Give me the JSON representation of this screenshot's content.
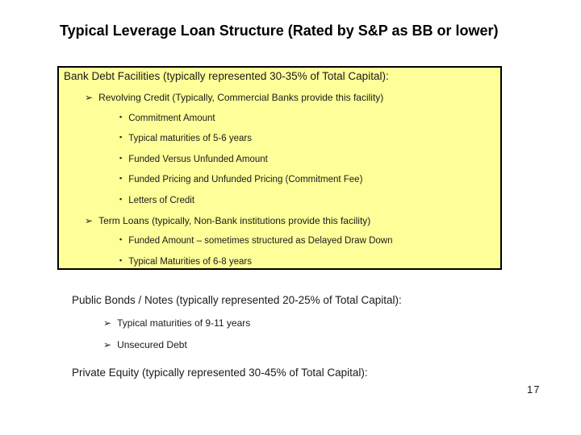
{
  "slide": {
    "title": "Typical Leverage Loan Structure (Rated by S&P as BB or lower)",
    "page_number": "17"
  },
  "icons": {
    "arrow_bullet": "➢",
    "square_bullet": "▪"
  },
  "colors": {
    "background": "#FFFFFF",
    "box_fill": "#FFFF99",
    "box_border": "#000000",
    "text": "#000000"
  },
  "bank_box": {
    "header": "Bank Debt Facilities (typically represented 30-35% of Total Capital):",
    "items": [
      {
        "level": 1,
        "text": "Revolving Credit (Typically, Commercial Banks provide this facility)"
      },
      {
        "level": 2,
        "text": "Commitment Amount"
      },
      {
        "level": 2,
        "text": "Typical maturities of 5-6 years"
      },
      {
        "level": 2,
        "text": "Funded Versus Unfunded Amount"
      },
      {
        "level": 2,
        "text": "Funded Pricing and Unfunded Pricing (Commitment Fee)"
      },
      {
        "level": 2,
        "text": "Letters of Credit"
      },
      {
        "level": 1,
        "text": "Term Loans (typically, Non-Bank institutions provide this facility)"
      },
      {
        "level": 2,
        "text": "Funded Amount – sometimes structured as Delayed Draw Down"
      },
      {
        "level": 2,
        "text": "Typical Maturities of 6-8 years"
      }
    ]
  },
  "public_bonds": {
    "header": "Public Bonds / Notes (typically represented 20-25% of Total Capital):",
    "items": [
      {
        "text": "Typical maturities of 9-11 years"
      },
      {
        "text": "Unsecured Debt"
      }
    ]
  },
  "private_equity": {
    "header": "Private Equity (typically represented 30-45% of Total Capital):"
  }
}
